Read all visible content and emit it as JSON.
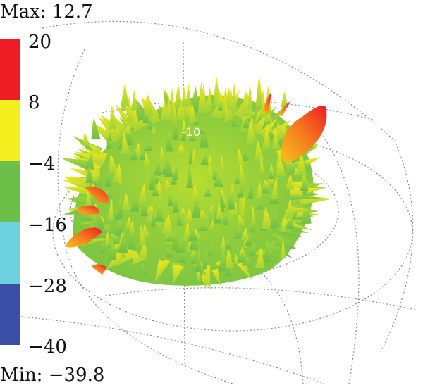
{
  "header": {
    "max_label": "Max: 12.7"
  },
  "footer": {
    "min_label": "Min: −39.8"
  },
  "colorbar": {
    "ticks": [
      "20",
      "8",
      "−4",
      "−16",
      "−28",
      "−40"
    ],
    "bands": [
      {
        "from": 8,
        "to": 20,
        "color": "#ee1c25"
      },
      {
        "from": -4,
        "to": 8,
        "color": "#f5ee1f"
      },
      {
        "from": -16,
        "to": -4,
        "color": "#6cc04a"
      },
      {
        "from": -28,
        "to": -16,
        "color": "#6dd0df"
      },
      {
        "from": -40,
        "to": -28,
        "color": "#3b4fa6"
      }
    ]
  },
  "pattern": {
    "ring_label": "-10",
    "colors": {
      "low": "#74c442",
      "mid": "#c9e12a",
      "high": "#f2e21c",
      "peak": "#ee3020",
      "orange": "#f59a1e"
    }
  }
}
